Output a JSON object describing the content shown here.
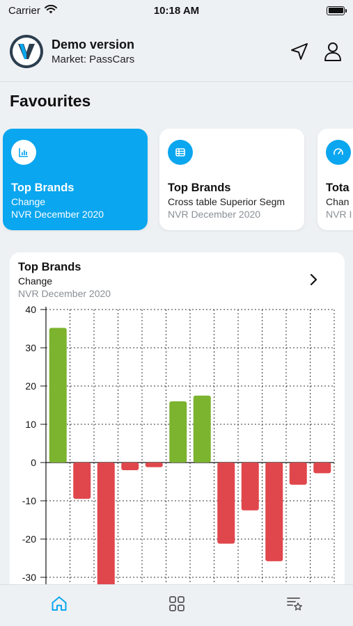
{
  "status_bar": {
    "carrier": "Carrier",
    "time": "10:18 AM"
  },
  "header": {
    "title": "Demo version",
    "subtitle": "Market: PassCars"
  },
  "favourites": {
    "title": "Favourites",
    "cards": [
      {
        "title": "Top Brands",
        "line1": "Change",
        "line2": "NVR December 2020",
        "icon": "bar-chart-icon",
        "active": true
      },
      {
        "title": "Top Brands",
        "line1": "Cross table Superior Segm",
        "line2": "NVR December 2020",
        "icon": "table-icon",
        "active": false
      },
      {
        "title": "Tota",
        "line1": "Chan",
        "line2": "NVR I",
        "icon": "gauge-icon",
        "active": false
      }
    ]
  },
  "chart_card": {
    "title": "Top Brands",
    "subtitle": "Change",
    "date": "NVR December 2020"
  },
  "chart_data": {
    "type": "bar",
    "ylim": [
      -32,
      40
    ],
    "yticks": [
      40,
      30,
      20,
      10,
      0,
      -10,
      -20,
      -30
    ],
    "grid": true,
    "positive_color": "#7cb32f",
    "negative_color": "#e0474c",
    "values": [
      35.2,
      -9.5,
      -33,
      -2,
      -1.2,
      16,
      17.5,
      -21.2,
      -12.5,
      -25.8,
      -5.8,
      -2.8
    ]
  },
  "colors": {
    "accent": "#0aa6ef"
  },
  "tabs": [
    {
      "icon": "home-icon",
      "active": true
    },
    {
      "icon": "grid-icon",
      "active": false
    },
    {
      "icon": "starred-list-icon",
      "active": false
    }
  ]
}
